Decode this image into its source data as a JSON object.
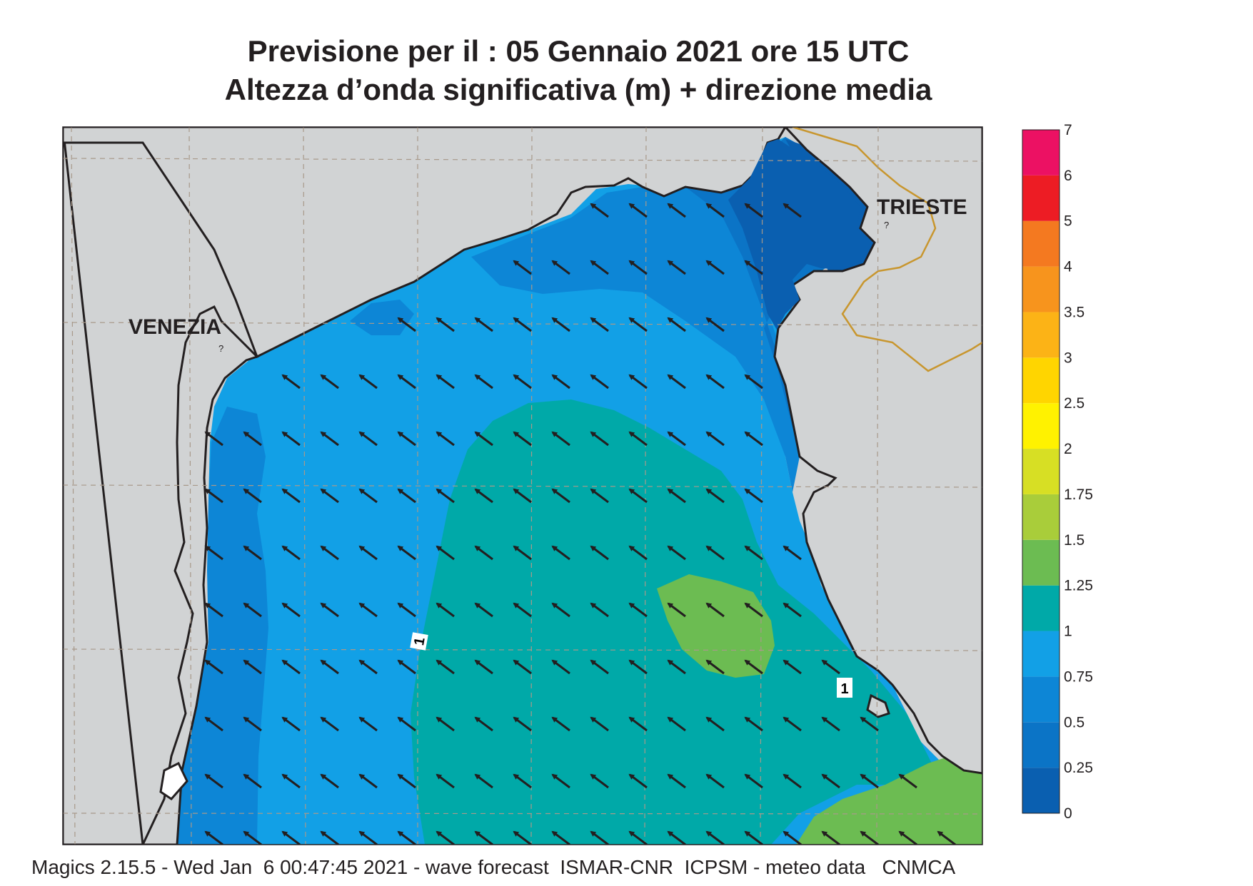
{
  "title_line1": "Previsione per il  :  05  Gennaio  2021    ore 15 UTC",
  "title_line2": "Altezza d’onda significativa (m) + direzione media",
  "footer": "Magics 2.15.5 - Wed Jan  6 00:47:45 2021 - wave forecast  ISMAR-CNR  ICPSM - meteo data   CNMCA",
  "cities": [
    {
      "name": "VENEZIA"
    },
    {
      "name": "TRIESTE"
    }
  ],
  "contour_labels": [
    "1",
    "1"
  ],
  "legend": {
    "levels": [
      "0",
      "0.25",
      "0.5",
      "0.75",
      "1",
      "1.25",
      "1.5",
      "1.75",
      "2",
      "2.5",
      "3",
      "3.5",
      "4",
      "5",
      "6",
      "7"
    ],
    "colors": [
      "#0a5fb0",
      "#0b74c6",
      "#0d86d6",
      "#12a0e6",
      "#00a9a8",
      "#6cbc52",
      "#a9cd3a",
      "#d7df24",
      "#fff200",
      "#ffd500",
      "#fcb316",
      "#f7941d",
      "#f47920",
      "#ed1c24",
      "#ec1163"
    ]
  },
  "colors": {
    "land": "#d1d3d4",
    "border": "#c8962e",
    "arrow": "#231f20"
  },
  "wave_direction": "north-west"
}
